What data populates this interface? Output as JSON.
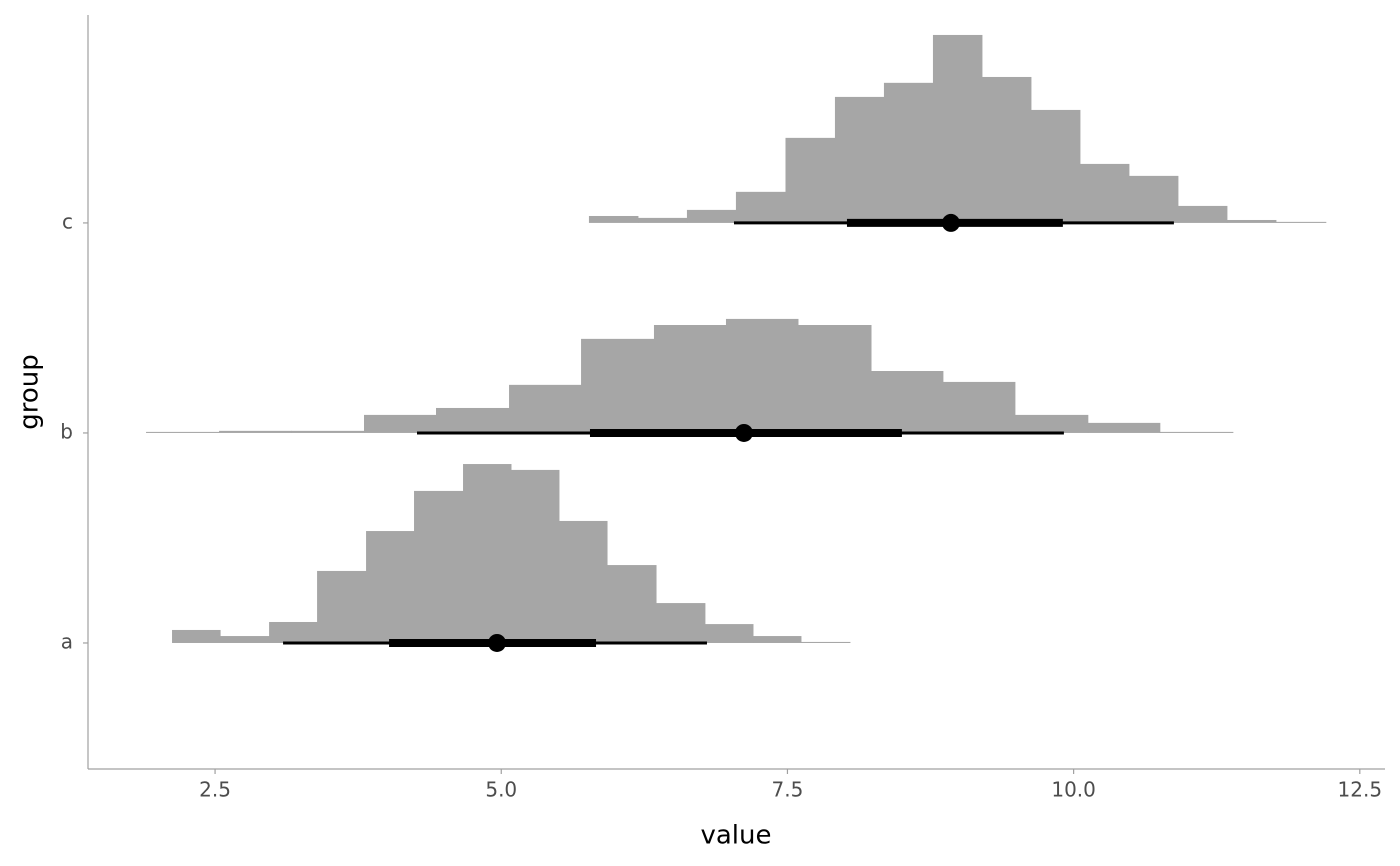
{
  "chart_data": {
    "type": "histinterval",
    "xlabel": "value",
    "ylabel": "group",
    "xlim": [
      1.39,
      12.72
    ],
    "xticks": [
      2.5,
      {
        "value": 5,
        "label": "5.0"
      },
      7.5,
      {
        "value": 10,
        "label": "10.0"
      },
      12.5
    ],
    "categories": [
      "a",
      "b",
      "c"
    ],
    "color": "#a6a6a6",
    "interval_color": "#000000",
    "groups": [
      {
        "bins": [
          2.124,
          2.544,
          2.972,
          3.391,
          3.819,
          4.238,
          4.666,
          5.085,
          5.504,
          5.924,
          6.352,
          6.779,
          7.199,
          7.618,
          8.046
        ],
        "heights": [
          0.062,
          0.033,
          0.1,
          0.343,
          0.533,
          0.724,
          0.852,
          0.824,
          0.581,
          0.371,
          0.19,
          0.09,
          0.033,
          0.005
        ],
        "median": 4.963,
        "inner_interval": [
          4.02,
          5.828
        ],
        "outer_interval": [
          3.094,
          6.797
        ]
      },
      {
        "bins": [
          1.897,
          2.535,
          3.164,
          3.801,
          4.43,
          5.068,
          5.697,
          6.334,
          6.963,
          7.592,
          8.23,
          8.858,
          9.487,
          10.124,
          10.753,
          11.391
        ],
        "heights": [
          0.005,
          0.01,
          0.01,
          0.086,
          0.119,
          0.229,
          0.448,
          0.514,
          0.543,
          0.514,
          0.295,
          0.243,
          0.086,
          0.048,
          0.005
        ],
        "median": 7.12,
        "inner_interval": [
          5.775,
          8.5
        ],
        "outer_interval": [
          4.264,
          9.915
        ]
      },
      {
        "bins": [
          5.766,
          6.194,
          6.622,
          7.05,
          7.483,
          7.915,
          8.343,
          8.771,
          9.199,
          9.627,
          10.055,
          10.483,
          10.911,
          11.339,
          11.767,
          12.203
        ],
        "heights": [
          0.033,
          0.024,
          0.062,
          0.148,
          0.405,
          0.6,
          0.667,
          0.895,
          0.695,
          0.538,
          0.281,
          0.224,
          0.081,
          0.014,
          0.005
        ],
        "median": 8.928,
        "inner_interval": [
          8.02,
          9.906
        ],
        "outer_interval": [
          7.033,
          10.876
        ]
      }
    ]
  }
}
